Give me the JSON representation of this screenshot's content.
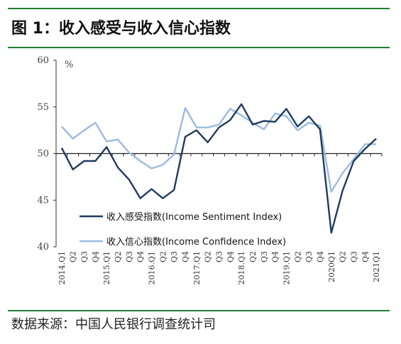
{
  "figure": {
    "title": "图 1：收入感受与收入信心指数",
    "source": "数据来源：中国人民银行调查统计司"
  },
  "chart_data": {
    "type": "line",
    "title": "",
    "ylabel": "%",
    "ylim": [
      40,
      60
    ],
    "yticks": [
      40,
      45,
      50,
      55,
      60
    ],
    "baseline": 50,
    "grid": false,
    "legend": "lower-left",
    "x": [
      "2014.Q1",
      "Q2",
      "Q3",
      "Q4",
      "2015.Q1",
      "Q2",
      "Q3",
      "Q4",
      "2016.Q1",
      "Q2",
      "Q3",
      "Q4",
      "2017.Q1",
      "Q2",
      "Q3",
      "Q4",
      "2018.Q1",
      "Q2",
      "Q3",
      "Q4",
      "2019.Q1",
      "Q2",
      "Q3",
      "Q4",
      "2020Q1",
      "Q2",
      "Q3",
      "Q4",
      "2021Q1"
    ],
    "series": [
      {
        "name": "收入感受指数(Income Sentiment Index)",
        "color": "#1f3b5f",
        "values": [
          50.6,
          48.3,
          49.2,
          49.2,
          50.7,
          48.5,
          47.2,
          45.2,
          46.2,
          45.2,
          46.1,
          51.8,
          52.5,
          51.2,
          52.8,
          53.6,
          55.3,
          53.1,
          53.5,
          53.4,
          54.8,
          52.9,
          54.0,
          52.6,
          41.5,
          46.0,
          49.2,
          50.5,
          51.6
        ]
      },
      {
        "name": "收入信心指数(Income Confidence Index)",
        "color": "#9bbbdf",
        "values": [
          52.9,
          51.6,
          52.5,
          53.3,
          51.3,
          51.5,
          50.1,
          49.2,
          48.4,
          48.8,
          49.9,
          54.9,
          52.8,
          52.8,
          53.1,
          54.8,
          54.1,
          53.3,
          52.6,
          54.3,
          54.0,
          52.5,
          53.3,
          53.0,
          45.9,
          47.9,
          49.4,
          51.0,
          51.0
        ]
      }
    ]
  }
}
